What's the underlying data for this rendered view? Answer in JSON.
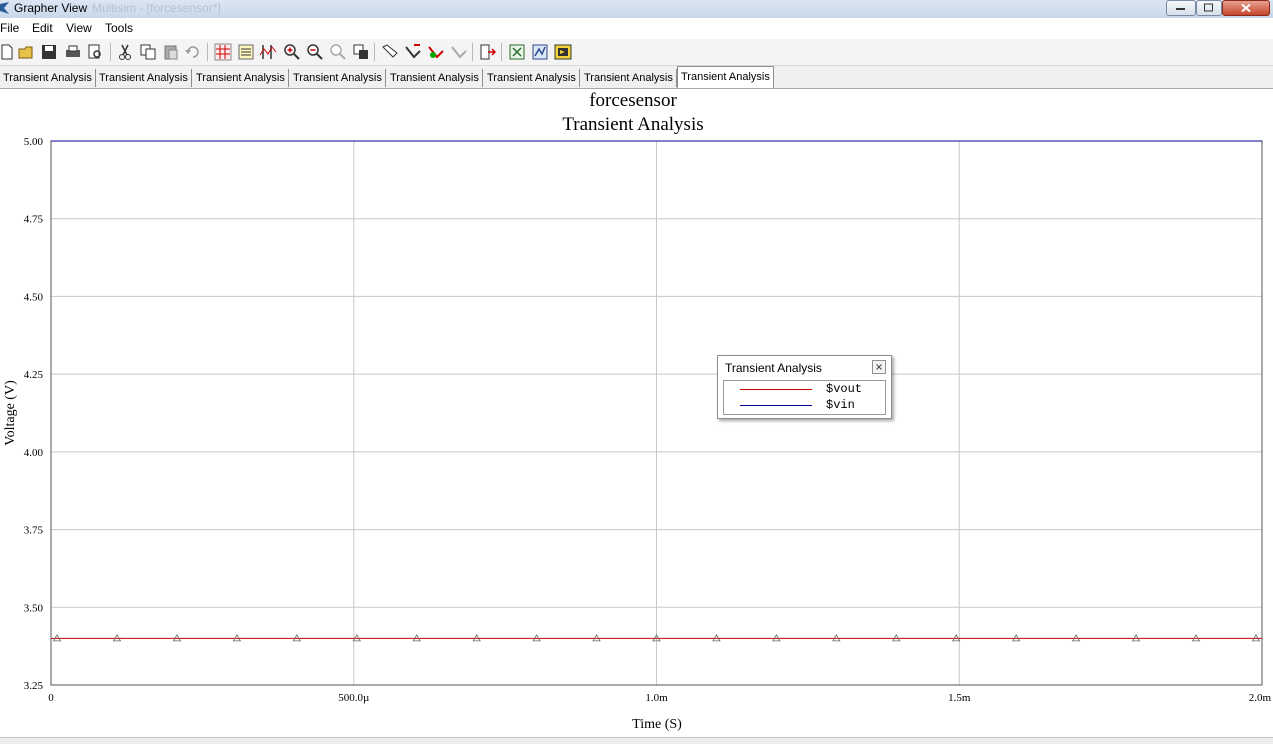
{
  "window": {
    "title": "Grapher View",
    "title_suffix": "Multisim - [forcesensor*]"
  },
  "menu": [
    "File",
    "Edit",
    "View",
    "Tools"
  ],
  "toolbar_icons": [
    "new-icon",
    "open-icon",
    "save-icon",
    "print-icon",
    "print-preview-icon",
    "cut-icon",
    "copy-icon",
    "paste-icon",
    "undo-icon",
    "grid-icon",
    "legend-icon",
    "cursors-icon",
    "zoom-in-icon",
    "zoom-out-icon",
    "zoom-fit-icon",
    "overlay-icon",
    "select-traces-icon",
    "trace-properties-icon",
    "reverse-colors-icon",
    "clear-icon",
    "export-icon",
    "excel-export-icon",
    "measurement-icon",
    "labview-icon"
  ],
  "tabs": [
    "Transient Analysis",
    "Transient Analysis",
    "Transient Analysis",
    "Transient Analysis",
    "Transient Analysis",
    "Transient Analysis",
    "Transient Analysis",
    "Transient Analysis"
  ],
  "active_tab": 7,
  "chart_data": {
    "type": "line",
    "title": "forcesensor",
    "subtitle": "Transient Analysis",
    "xlabel": "Time (S)",
    "ylabel": "Voltage (V)",
    "xlim": [
      0,
      0.002
    ],
    "ylim": [
      3.25,
      5.0
    ],
    "x_ticks": [
      0,
      0.0005,
      0.001,
      0.0015,
      0.002
    ],
    "x_tick_labels": [
      "0",
      "500.0µ",
      "1.0m",
      "1.5m",
      "2.0m"
    ],
    "y_ticks": [
      3.25,
      3.5,
      3.75,
      4.0,
      4.25,
      4.5,
      4.75,
      5.0
    ],
    "y_tick_labels": [
      "3.25",
      "3.50",
      "3.75",
      "4.00",
      "4.25",
      "4.50",
      "4.75",
      "5.00"
    ],
    "grid": true,
    "series": [
      {
        "name": "$vout",
        "color": "#cc0000",
        "marker": "triangle",
        "x": [
          0.0,
          0.0002,
          0.0004,
          0.0006,
          0.0008,
          0.001,
          0.0012,
          0.0014,
          0.0016,
          0.0018,
          0.002
        ],
        "y": [
          3.4,
          3.4,
          3.4,
          3.4,
          3.4,
          3.4,
          3.4,
          3.4,
          3.4,
          3.4,
          3.4
        ],
        "marker_x": [
          1e-05,
          0.000109,
          0.000208,
          0.000307,
          0.000406,
          0.000505,
          0.000604,
          0.000703,
          0.000802,
          0.000901,
          0.001,
          0.001099,
          0.001198,
          0.001297,
          0.001396,
          0.001495,
          0.001594,
          0.001693,
          0.001792,
          0.001891,
          0.00199
        ]
      },
      {
        "name": "$vin",
        "color": "#000099",
        "x": [
          0.0,
          0.002
        ],
        "y": [
          5.0,
          5.0
        ]
      }
    ]
  },
  "legend": {
    "title": "Transient Analysis",
    "entries": [
      {
        "name": "$vout",
        "color": "#cc0000"
      },
      {
        "name": "$vin",
        "color": "#000099"
      }
    ]
  }
}
